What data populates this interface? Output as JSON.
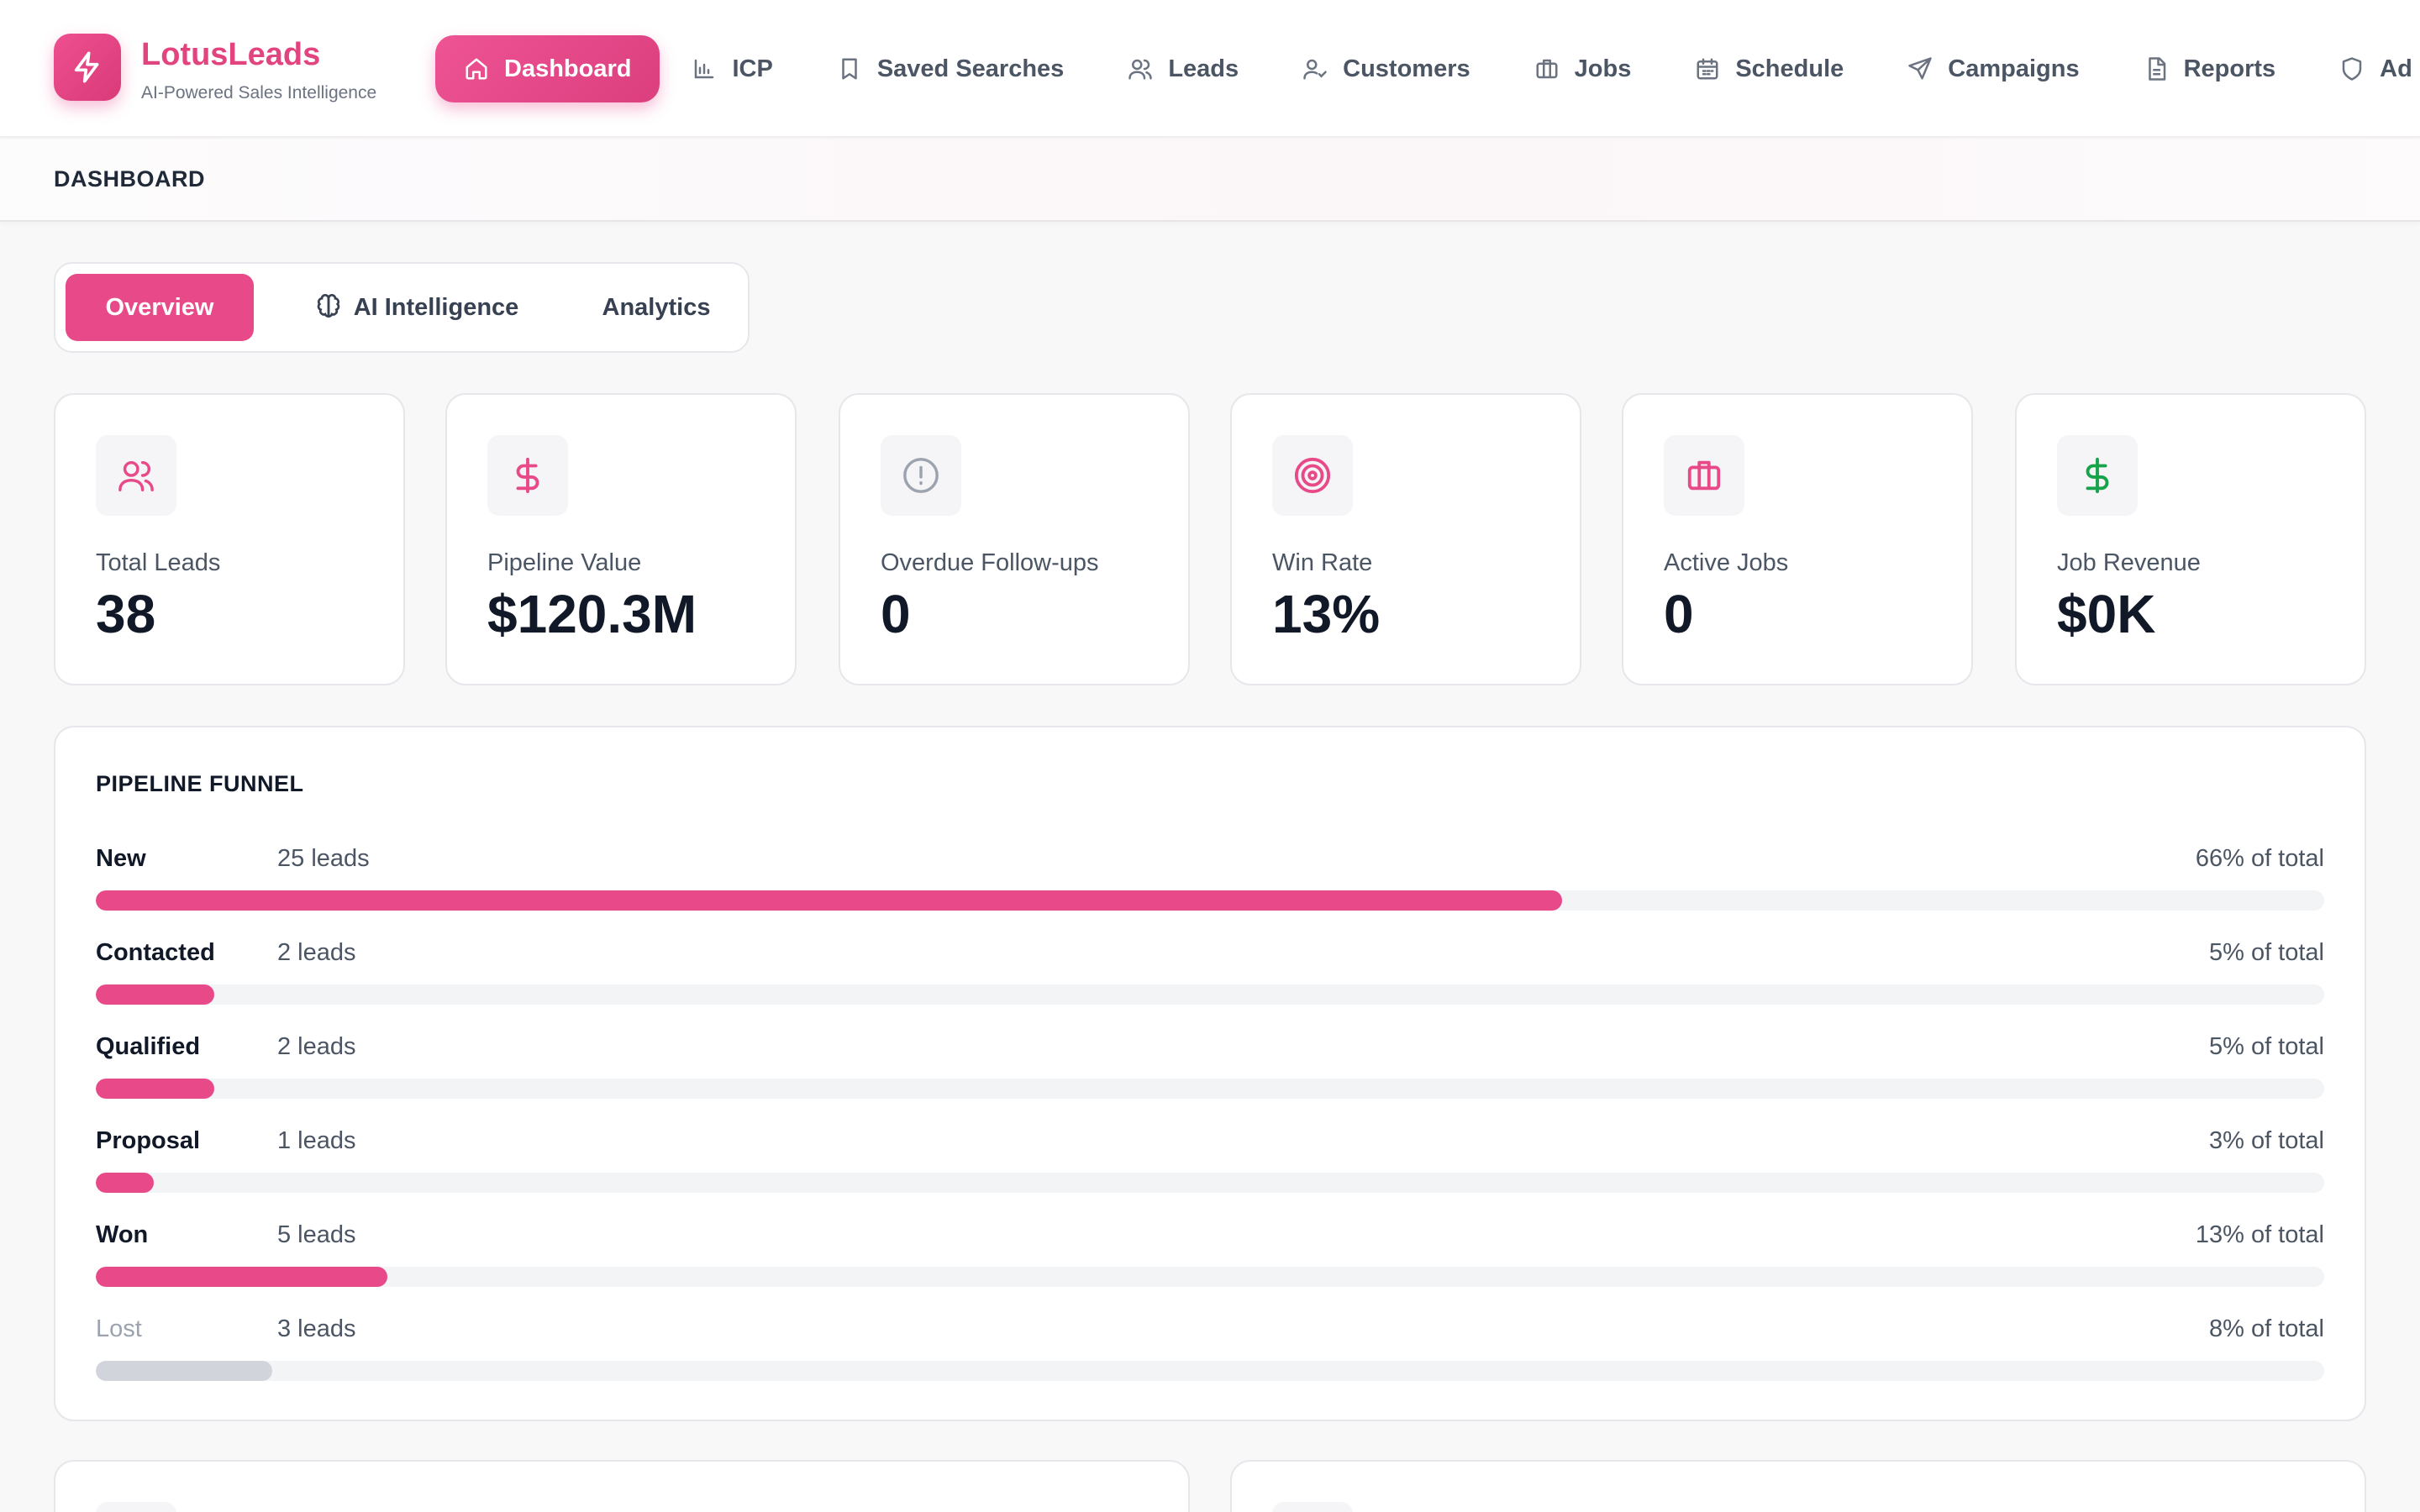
{
  "brand": {
    "name": "LotusLeads",
    "tagline": "AI-Powered Sales Intelligence",
    "logo_icon": "lightning-icon"
  },
  "nav": {
    "items": [
      {
        "label": "Dashboard",
        "icon": "home-icon",
        "active": true
      },
      {
        "label": "ICP",
        "icon": "bar-chart-icon"
      },
      {
        "label": "Saved Searches",
        "icon": "bookmark-icon"
      },
      {
        "label": "Leads",
        "icon": "users-icon"
      },
      {
        "label": "Customers",
        "icon": "user-check-icon"
      },
      {
        "label": "Jobs",
        "icon": "briefcase-icon"
      },
      {
        "label": "Schedule",
        "icon": "calendar-icon"
      },
      {
        "label": "Campaigns",
        "icon": "send-icon"
      },
      {
        "label": "Reports",
        "icon": "file-text-icon"
      },
      {
        "label": "Ad",
        "icon": "shield-icon"
      }
    ]
  },
  "page": {
    "title": "DASHBOARD"
  },
  "tabs": [
    {
      "label": "Overview",
      "active": true
    },
    {
      "label": "AI Intelligence",
      "icon": "brain-icon"
    },
    {
      "label": "Analytics"
    }
  ],
  "stats": [
    {
      "label": "Total Leads",
      "value": "38",
      "icon": "users-icon",
      "color": "#e84a89"
    },
    {
      "label": "Pipeline Value",
      "value": "$120.3M",
      "icon": "dollar-icon",
      "color": "#e84a89"
    },
    {
      "label": "Overdue Follow-ups",
      "value": "0",
      "icon": "alert-circle-icon",
      "color": "#9ca3af"
    },
    {
      "label": "Win Rate",
      "value": "13%",
      "icon": "target-icon",
      "color": "#e84a89"
    },
    {
      "label": "Active Jobs",
      "value": "0",
      "icon": "briefcase-icon",
      "color": "#e84a89"
    },
    {
      "label": "Job Revenue",
      "value": "$0K",
      "icon": "dollar-icon",
      "color": "#16a34a"
    }
  ],
  "funnel": {
    "title": "PIPELINE FUNNEL",
    "stages": [
      {
        "name": "New",
        "count": "25 leads",
        "pct_label": "66% of total",
        "fraction": 0.658,
        "color": "#e84a89"
      },
      {
        "name": "Contacted",
        "count": "2 leads",
        "pct_label": "5% of total",
        "fraction": 0.053,
        "color": "#e84a89"
      },
      {
        "name": "Qualified",
        "count": "2 leads",
        "pct_label": "5% of total",
        "fraction": 0.053,
        "color": "#e84a89"
      },
      {
        "name": "Proposal",
        "count": "1 leads",
        "pct_label": "3% of total",
        "fraction": 0.026,
        "color": "#e84a89"
      },
      {
        "name": "Won",
        "count": "5 leads",
        "pct_label": "13% of total",
        "fraction": 0.131,
        "color": "#e84a89"
      },
      {
        "name": "Lost",
        "count": "3 leads",
        "pct_label": "8% of total",
        "fraction": 0.079,
        "color": "#d1d5db",
        "muted": true
      }
    ]
  }
}
